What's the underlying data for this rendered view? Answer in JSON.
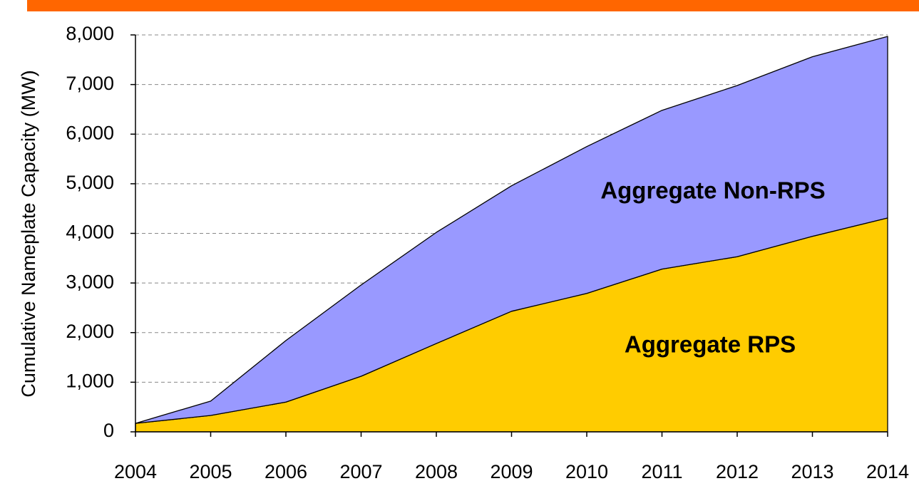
{
  "chart_data": {
    "type": "stacked-area",
    "y_label": "Cumulative Nameplate Capacity (MW)",
    "categories": [
      "2004",
      "2005",
      "2006",
      "2007",
      "2008",
      "2009",
      "2010",
      "2011",
      "2012",
      "2013",
      "2014"
    ],
    "series": [
      {
        "name": "Aggregate RPS",
        "color": "#ffcc00",
        "values": [
          170,
          330,
          600,
          1120,
          1780,
          2430,
          2790,
          3280,
          3530,
          3940,
          4310
        ]
      },
      {
        "name": "Aggregate Non-RPS",
        "color": "#9999ff",
        "values": [
          0,
          290,
          1240,
          1840,
          2240,
          2530,
          2960,
          3200,
          3450,
          3620,
          3660
        ]
      }
    ],
    "ylim": [
      0,
      8000
    ],
    "yticks": [
      0,
      {
        "value": 1000,
        "label": "1,000"
      },
      {
        "value": 2000,
        "label": "2,000"
      },
      {
        "value": 3000,
        "label": "3,000"
      },
      {
        "value": 4000,
        "label": "4,000"
      },
      {
        "value": 5000,
        "label": "5,000"
      },
      {
        "value": 6000,
        "label": "6,000"
      },
      {
        "value": 7000,
        "label": "7,000"
      },
      {
        "value": 8000,
        "label": "8,000"
      }
    ],
    "grid": true
  }
}
